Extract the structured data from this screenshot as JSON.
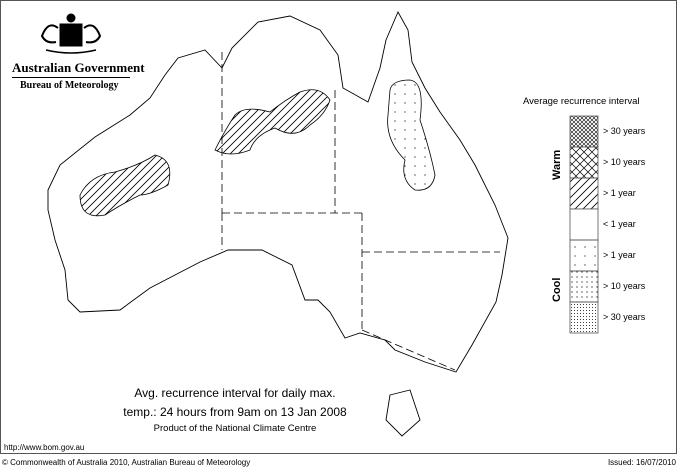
{
  "logo": {
    "line1": "Australian Government",
    "line2": "Bureau of Meteorology"
  },
  "title": {
    "line1": "Avg. recurrence interval for daily max.",
    "line2": "temp.: 24 hours from 9am on 13 Jan 2008",
    "line3": "Product of the National Climate Centre"
  },
  "url": "http://www.bom.gov.au",
  "copyright": "© Commonwealth of Australia 2010, Australian Bureau of Meteorology",
  "issued": "Issued: 16/07/2010",
  "legend": {
    "title": "Average recurrence interval",
    "warm_label": "Warm",
    "cool_label": "Cool",
    "items": [
      {
        "label": "> 30 years",
        "pattern": "dense-crosshatch"
      },
      {
        "label": "> 10 years",
        "pattern": "crosshatch"
      },
      {
        "label": "> 1 year",
        "pattern": "diagonal-hatch"
      },
      {
        "label": "< 1 year",
        "pattern": "none"
      },
      {
        "label": "> 1 year",
        "pattern": "sparse-dots"
      },
      {
        "label": "> 10 years",
        "pattern": "dots"
      },
      {
        "label": "> 30 years",
        "pattern": "dense-dots"
      }
    ]
  },
  "map_regions": [
    {
      "area": "Western Australia (Pilbara interior)",
      "category": "warm > 1 year"
    },
    {
      "area": "Northern Territory (Top End interior)",
      "category": "warm > 1 year"
    },
    {
      "area": "Queensland (central interior)",
      "category": "cool > 1 year"
    }
  ]
}
